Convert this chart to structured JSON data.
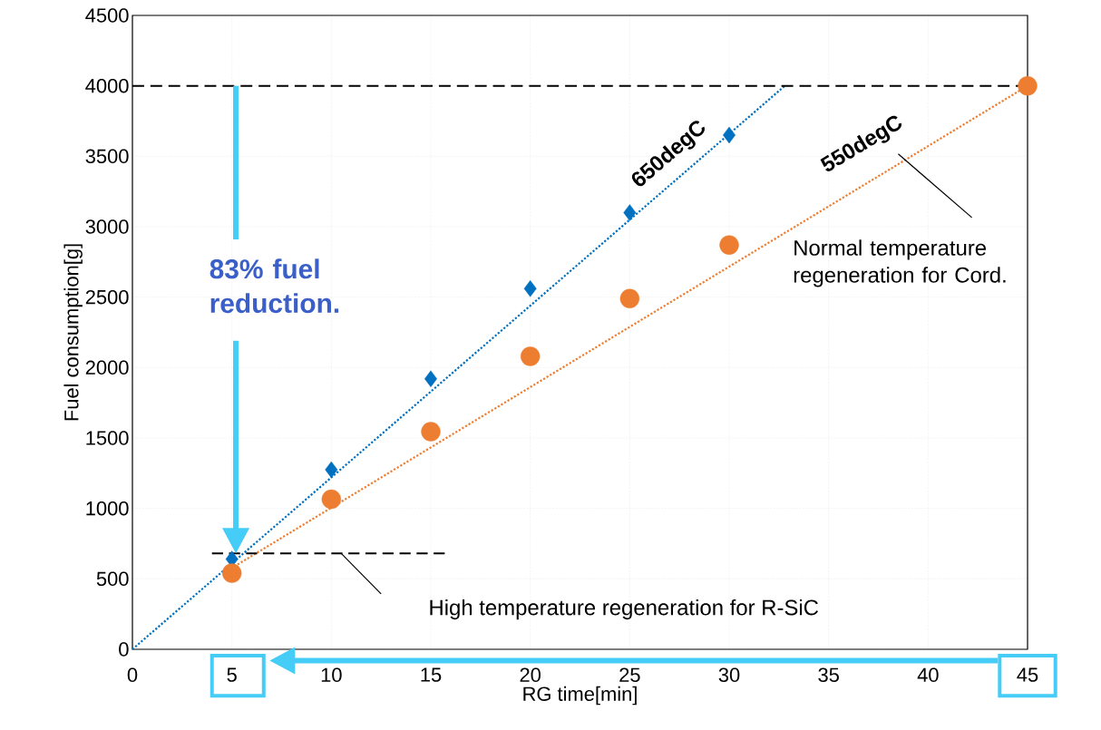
{
  "chart_data": {
    "type": "scatter",
    "xlabel": "RG time[min]",
    "ylabel": "Fuel consumption[g]",
    "xlim": [
      0,
      45
    ],
    "ylim": [
      0,
      4500
    ],
    "xticks": [
      0,
      5,
      10,
      15,
      20,
      25,
      30,
      35,
      40,
      45
    ],
    "yticks": [
      0,
      500,
      1000,
      1500,
      2000,
      2500,
      3000,
      3500,
      4000,
      4500
    ],
    "grid": true,
    "series": [
      {
        "type": "line",
        "color": "#0070c0",
        "marker": "none",
        "line_style": "dotted",
        "x": [
          0,
          32.8
        ],
        "values": [
          0,
          4000
        ]
      },
      {
        "type": "line",
        "color": "#ed7d31",
        "marker": "none",
        "line_style": "dotted",
        "x": [
          4.8,
          45
        ],
        "values": [
          560,
          4000
        ]
      },
      {
        "color": "#0070c0",
        "marker": "diamond",
        "x": [
          5,
          10,
          15,
          20,
          25,
          30
        ],
        "values": [
          640,
          1275,
          1920,
          2560,
          3100,
          3650
        ]
      },
      {
        "color": "#ed7d31",
        "marker": "circle",
        "x": [
          5,
          10,
          15,
          20,
          25,
          30,
          45
        ],
        "values": [
          540,
          1065,
          1545,
          2080,
          2490,
          2870,
          4000
        ]
      },
      {
        "type": "line",
        "color": "#000000",
        "marker": "none",
        "line_style": "dashed",
        "x": [
          4,
          15.7
        ],
        "values": [
          680,
          680
        ]
      }
    ],
    "ref_lines": [
      {
        "axis": "y",
        "value": 4000,
        "color": "#000000",
        "line_style": "dashed"
      }
    ],
    "annotations": [
      "650degC",
      "550degC",
      "Normal temperature regeneration  for Cord.",
      "High temperature regeneration for R-SiC",
      "83% fuel reduction."
    ]
  }
}
